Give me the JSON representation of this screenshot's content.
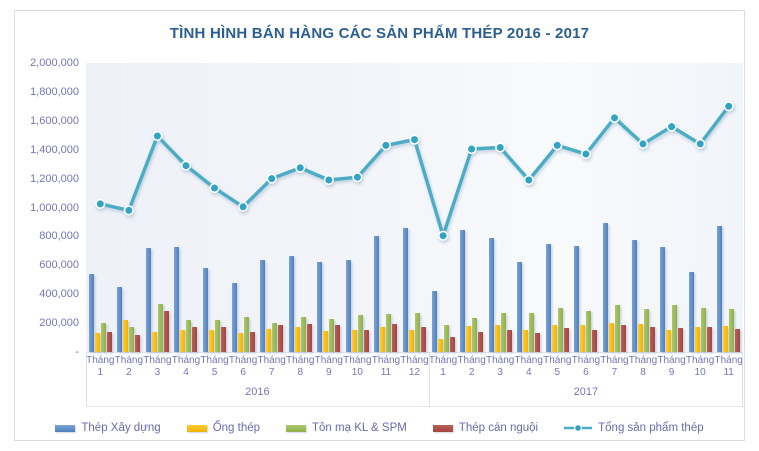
{
  "title": "TÌNH HÌNH BÁN HÀNG CÁC SẢN PHẨM THÉP 2016 - 2017",
  "colors": {
    "title_text": "#2B5F94",
    "axis_text": "#7575B9",
    "legend_text": "#6A6AB0",
    "blue": "#4F81BD",
    "blue_light": "#7BA2D4",
    "yellow": "#F2B300",
    "yellow_light": "#FFCC33",
    "green": "#8FAE4C",
    "green_light": "#ABC96B",
    "red": "#A3453F",
    "red_light": "#BC5F58",
    "teal_line": "#4BACC6",
    "teal_marker": "#31A3C4",
    "plot_background": "#F1F4F9",
    "frame_border": "#D9DCE4"
  },
  "legend": [
    {
      "label": "Thép Xây dựng",
      "type": "bar",
      "color_key": "blue"
    },
    {
      "label": "Ống thép",
      "type": "bar",
      "color_key": "yellow"
    },
    {
      "label": "Tôn mạ KL & SPM",
      "type": "bar",
      "color_key": "green"
    },
    {
      "label": "Thép cán nguội",
      "type": "bar",
      "color_key": "red"
    },
    {
      "label": "Tổng sản phẩm thép",
      "type": "line",
      "color_key": "teal_line"
    }
  ],
  "chart_data": {
    "type": "bar",
    "subtype": "clustered-bars-plus-line",
    "title": "TÌNH HÌNH BÁN HÀNG CÁC SẢN PHẨM THÉP 2016 - 2017",
    "xlabel": "",
    "ylabel": "",
    "ylim": [
      0,
      2000000
    ],
    "y_tick_step": 200000,
    "y_tick_labels": [
      "2,000,000",
      "1,800,000",
      "1,600,000",
      "1,400,000",
      "1,200,000",
      "1,000,000",
      "800,000",
      "600,000",
      "400,000",
      "200,000",
      "-"
    ],
    "grid": false,
    "legend_position": "bottom",
    "month_prefix": "Tháng",
    "groups": [
      {
        "year": "2016",
        "months": [
          "1",
          "2",
          "3",
          "4",
          "5",
          "6",
          "7",
          "8",
          "9",
          "10",
          "11",
          "12"
        ]
      },
      {
        "year": "2017",
        "months": [
          "1",
          "2",
          "3",
          "4",
          "5",
          "6",
          "7",
          "8",
          "9",
          "10",
          "11"
        ]
      }
    ],
    "bar_series": [
      {
        "name": "Thép Xây dựng",
        "key": "thep-xay-dung",
        "color_key": "blue",
        "values": [
          540000,
          450000,
          720000,
          725000,
          580000,
          475000,
          640000,
          665000,
          620000,
          635000,
          805000,
          860000,
          425000,
          845000,
          790000,
          625000,
          745000,
          735000,
          895000,
          775000,
          730000,
          555000,
          870000
        ]
      },
      {
        "name": "Ống thép",
        "key": "ong-thep",
        "color_key": "yellow",
        "values": [
          130000,
          220000,
          140000,
          155000,
          150000,
          130000,
          160000,
          175000,
          145000,
          155000,
          170000,
          155000,
          90000,
          180000,
          185000,
          150000,
          190000,
          190000,
          200000,
          195000,
          155000,
          175000,
          180000
        ]
      },
      {
        "name": "Tôn mạ KL & SPM",
        "key": "ton-ma-kl-spm",
        "color_key": "green",
        "values": [
          200000,
          175000,
          335000,
          225000,
          225000,
          240000,
          200000,
          240000,
          230000,
          255000,
          260000,
          270000,
          185000,
          235000,
          270000,
          270000,
          305000,
          285000,
          325000,
          295000,
          325000,
          305000,
          295000
        ]
      },
      {
        "name": "Thép cán nguội",
        "key": "thep-can-nguoi",
        "color_key": "red",
        "values": [
          140000,
          115000,
          285000,
          170000,
          175000,
          140000,
          190000,
          195000,
          185000,
          155000,
          195000,
          175000,
          105000,
          140000,
          150000,
          135000,
          165000,
          155000,
          190000,
          170000,
          165000,
          175000,
          160000
        ]
      }
    ],
    "line_series": {
      "name": "Tổng sản phẩm thép",
      "key": "tong-san-pham-thep",
      "color_key": "teal_line",
      "values": [
        1025000,
        980000,
        1495000,
        1290000,
        1135000,
        1005000,
        1200000,
        1275000,
        1190000,
        1210000,
        1430000,
        1470000,
        805000,
        1405000,
        1415000,
        1190000,
        1430000,
        1370000,
        1620000,
        1440000,
        1560000,
        1440000,
        1700000
      ]
    }
  }
}
